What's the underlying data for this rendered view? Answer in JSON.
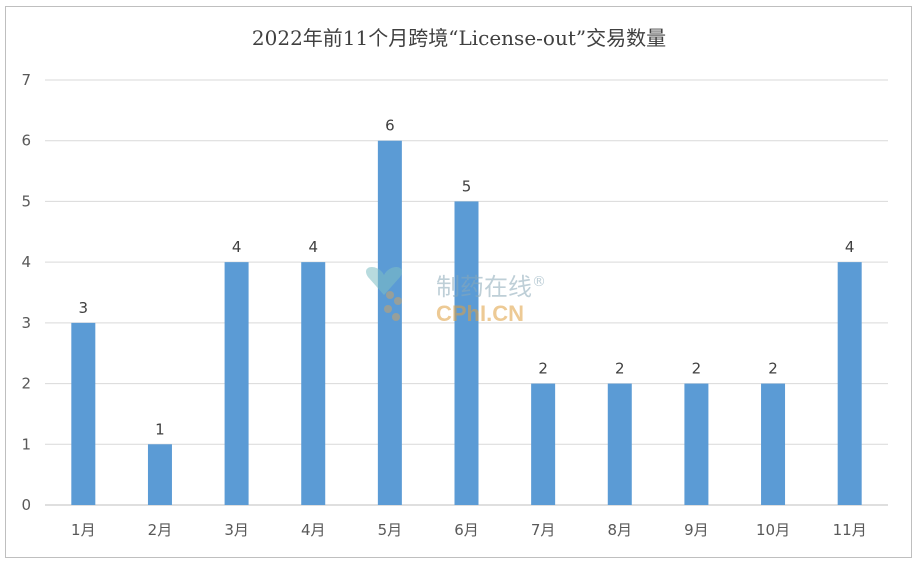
{
  "chart_data": {
    "type": "bar",
    "title": "2022年前11个月跨境“License-out”交易数量",
    "xlabel": "",
    "ylabel": "",
    "categories": [
      "1月",
      "2月",
      "3月",
      "4月",
      "5月",
      "6月",
      "7月",
      "8月",
      "9月",
      "10月",
      "11月"
    ],
    "values": [
      3,
      1,
      4,
      4,
      6,
      5,
      2,
      2,
      2,
      2,
      4
    ],
    "ylim": [
      0,
      7
    ],
    "yticks": [
      "0",
      "1",
      "2",
      "3",
      "4",
      "5",
      "6",
      "7"
    ],
    "bar_color": "#5b9bd5",
    "grid": true,
    "data_labels": true
  },
  "watermark": {
    "cn": "制药在线",
    "reg": "®",
    "en": "CPhI.CN"
  }
}
